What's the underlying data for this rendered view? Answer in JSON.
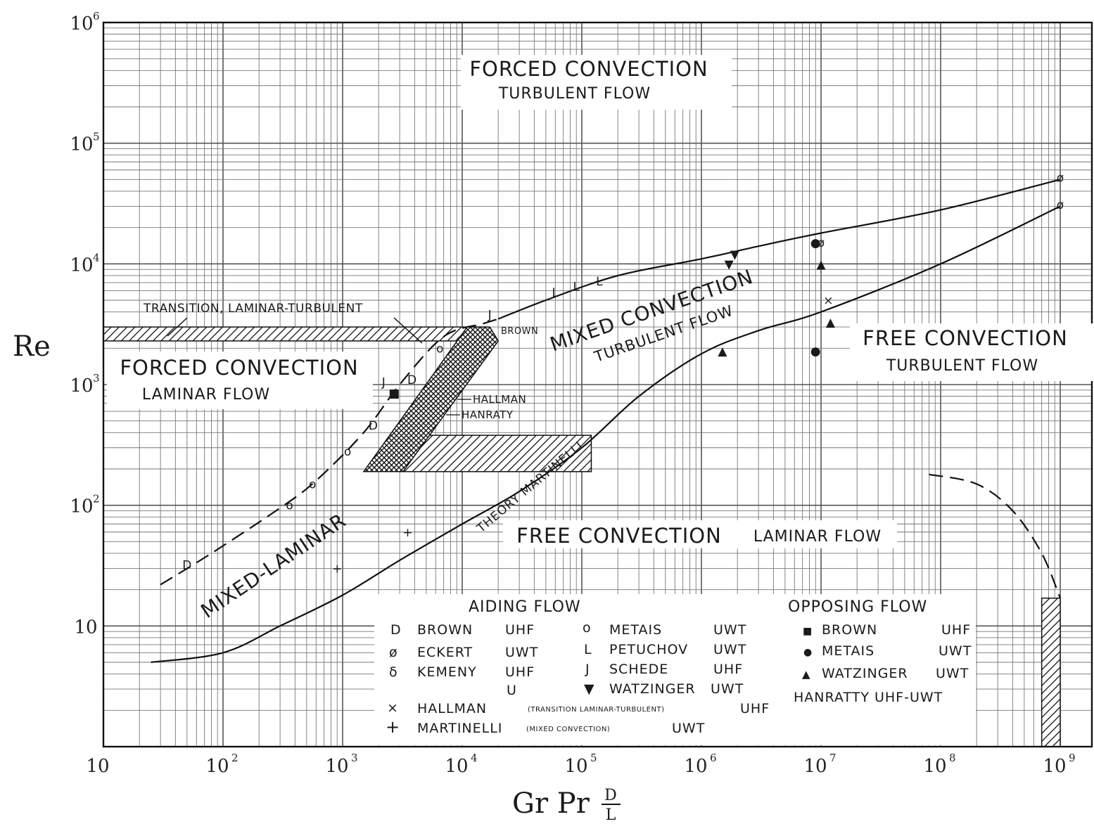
{
  "chart_data": {
    "type": "line",
    "x_scale": "log",
    "y_scale": "log",
    "xlim": [
      10,
      1000000000
    ],
    "ylim": [
      1,
      1000000
    ],
    "grid": true,
    "xlabel": "Gr Pr D/L",
    "xlabel_main": "Gr Pr",
    "xlabel_num": "D",
    "xlabel_den": "L",
    "ylabel": "Re",
    "x_ticks": [
      {
        "base": "10",
        "exp": "",
        "value": 10
      },
      {
        "base": "10",
        "exp": "2",
        "value": 100
      },
      {
        "base": "10",
        "exp": "3",
        "value": 1000
      },
      {
        "base": "10",
        "exp": "4",
        "value": 10000
      },
      {
        "base": "10",
        "exp": "5",
        "value": 100000
      },
      {
        "base": "10",
        "exp": "6",
        "value": 1000000
      },
      {
        "base": "10",
        "exp": "7",
        "value": 10000000
      },
      {
        "base": "10",
        "exp": "8",
        "value": 100000000
      },
      {
        "base": "10",
        "exp": "9",
        "value": 1000000000
      }
    ],
    "y_ticks": [
      {
        "base": "10",
        "exp": "",
        "value": 10
      },
      {
        "base": "10",
        "exp": "2",
        "value": 100
      },
      {
        "base": "10",
        "exp": "3",
        "value": 1000
      },
      {
        "base": "10",
        "exp": "4",
        "value": 10000
      },
      {
        "base": "10",
        "exp": "5",
        "value": 100000
      },
      {
        "base": "10",
        "exp": "6",
        "value": 1000000
      }
    ],
    "regions": [
      {
        "title": "FORCED CONVECTION",
        "subtitle": "TURBULENT FLOW",
        "x": 3000,
        "y": 400000
      },
      {
        "title": "FORCED CONVECTION",
        "subtitle": "LAMINAR FLOW",
        "x": 18,
        "y": 1300
      },
      {
        "title": "FREE CONVECTION",
        "subtitle": "TURBULENT FLOW",
        "x": 20000000,
        "y": 2600
      },
      {
        "title": "FREE CONVECTION",
        "subtitle": "LAMINAR FLOW",
        "x": 140000,
        "y": 62
      }
    ],
    "annotations": [
      {
        "text": "TRANSITION, LAMINAR-TURBULENT",
        "x": 45,
        "y": 4000
      },
      {
        "text": "BROWN",
        "x": 22000,
        "y": 3100
      },
      {
        "text": "HALLMAN",
        "x": 20000,
        "y": 900
      },
      {
        "text": "HANRATY",
        "x": 20000,
        "y": 680
      },
      {
        "text": "MIXED CONVECTION",
        "x": 60000,
        "y": 3600
      },
      {
        "text": "TURBULENT FLOW",
        "x": 90000,
        "y": 2400
      },
      {
        "text": "MIXED-LAMINAR",
        "x": 100,
        "y": 12
      },
      {
        "text": "THEORY MARTINELLI",
        "x": 1800,
        "y": 48
      }
    ],
    "series": [
      {
        "style": "dashed",
        "x": [
          30,
          80,
          300,
          600,
          1500,
          3000,
          7000,
          15000,
          20000
        ],
        "y": [
          22,
          40,
          95,
          160,
          400,
          1000,
          2500,
          3200,
          3500
        ]
      },
      {
        "style": "solid",
        "x": [
          20000,
          50000,
          200000,
          1000000,
          3000000,
          10000000,
          100000000,
          1000000000
        ],
        "y": [
          3500,
          5000,
          8000,
          11000,
          14000,
          18000,
          28000,
          50000
        ]
      },
      {
        "style": "solid",
        "x": [
          25,
          100,
          300,
          1000,
          3000,
          10000,
          30000,
          100000,
          300000,
          1000000,
          3000000,
          10000000,
          100000000,
          1000000000
        ],
        "y": [
          5,
          6,
          10,
          18,
          35,
          70,
          130,
          300,
          800,
          1800,
          2800,
          4000,
          10000,
          30000
        ]
      },
      {
        "style": "dashed",
        "x": [
          80000000,
          200000000,
          400000000,
          700000000,
          1000000000
        ],
        "y": [
          180,
          150,
          90,
          40,
          17
        ]
      }
    ],
    "bands": [
      {
        "name": "TRANSITION, LAMINAR-TURBULENT",
        "hatch": "diag",
        "x": [
          10,
          16000
        ],
        "y": [
          2300,
          3000
        ]
      },
      {
        "name": "HANRATY",
        "hatch": "diag",
        "x": [
          3000,
          120000
        ],
        "y": [
          190,
          380
        ]
      },
      {
        "name": "HALLMAN",
        "hatch": "cross",
        "polygon": [
          [
            1500,
            190
          ],
          [
            3200,
            190
          ],
          [
            20000,
            2300
          ],
          [
            17000,
            3000
          ],
          [
            11000,
            3000
          ]
        ]
      },
      {
        "name": "",
        "hatch": "diag",
        "x": [
          700000000,
          1000000000
        ],
        "y": [
          1,
          17
        ]
      }
    ],
    "points": [
      {
        "sym": "D",
        "x": 50,
        "y": 32
      },
      {
        "sym": "D",
        "x": 1800,
        "y": 460
      },
      {
        "sym": "D",
        "x": 3800,
        "y": 1100
      },
      {
        "sym": "o",
        "x": 360,
        "y": 100
      },
      {
        "sym": "o",
        "x": 560,
        "y": 150
      },
      {
        "sym": "o",
        "x": 1100,
        "y": 280
      },
      {
        "sym": "o",
        "x": 6500,
        "y": 2000
      },
      {
        "sym": "J",
        "x": 2200,
        "y": 1050
      },
      {
        "sym": "J",
        "x": 17000,
        "y": 3800
      },
      {
        "sym": "L",
        "x": 60000,
        "y": 5800
      },
      {
        "sym": "L",
        "x": 90000,
        "y": 6500
      },
      {
        "sym": "L",
        "x": 140000,
        "y": 7200
      },
      {
        "sym": "ø",
        "x": 10000000,
        "y": 15000
      },
      {
        "sym": "ø",
        "x": 1000000000,
        "y": 52000
      },
      {
        "sym": "ø",
        "x": 1000000000,
        "y": 31000
      },
      {
        "sym": "×",
        "x": 11500000,
        "y": 5000
      },
      {
        "sym": "+",
        "x": 3500,
        "y": 60
      },
      {
        "sym": "+",
        "x": 900,
        "y": 30
      },
      {
        "sym": "■",
        "x": 2700,
        "y": 850
      },
      {
        "sym": "●",
        "x": 9000000,
        "y": 15000
      },
      {
        "sym": "●",
        "x": 9000000,
        "y": 1900
      },
      {
        "sym": "▲",
        "x": 10000000,
        "y": 10000
      },
      {
        "sym": "▲",
        "x": 12000000,
        "y": 3300
      },
      {
        "sym": "▲",
        "x": 1500000,
        "y": 1900
      },
      {
        "sym": "▼",
        "x": 1900000,
        "y": 12000
      },
      {
        "sym": "▼",
        "x": 1700000,
        "y": 10000
      }
    ],
    "legend": {
      "aiding_title": "AIDING FLOW",
      "opposing_title": "OPPOSING FLOW",
      "aiding": [
        {
          "sym": "D",
          "name": "BROWN",
          "cond": "UHF"
        },
        {
          "sym": "ø",
          "name": "ECKERT",
          "cond": "UWT"
        },
        {
          "sym": "δ",
          "name": "KEMENY",
          "cond": "UHF",
          "cond2": "U"
        },
        {
          "sym": "o",
          "name": "METAIS",
          "cond": "UWT"
        },
        {
          "sym": "L",
          "name": "PETUCHOV",
          "cond": "UWT"
        },
        {
          "sym": "J",
          "name": "SCHEDE",
          "cond": "UHF"
        },
        {
          "sym": "▼",
          "name": "WATZINGER",
          "cond": "UWT"
        }
      ],
      "aiding_wide": [
        {
          "sym": "×",
          "name": "HALLMAN",
          "note": "(TRANSITION LAMINAR-TURBULENT)",
          "cond": "UHF"
        },
        {
          "sym": "+",
          "name": "MARTINELLI",
          "note": "(MIXED CONVECTION)",
          "cond": "UWT"
        }
      ],
      "opposing": [
        {
          "sym": "■",
          "name": "BROWN",
          "cond": "UHF"
        },
        {
          "sym": "●",
          "name": "METAIS",
          "cond": "UWT"
        },
        {
          "sym": "▲",
          "name": "WATZINGER",
          "cond": "UWT"
        }
      ],
      "opposing_extra": "HANRATTY UHF-UWT"
    }
  }
}
